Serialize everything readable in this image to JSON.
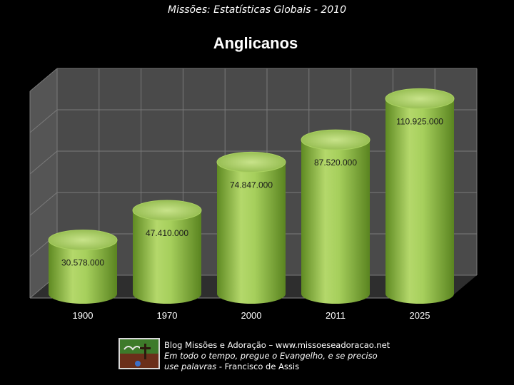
{
  "header": {
    "subtitle": "Missões: Estatísticas Globais - 2010"
  },
  "chart_data": {
    "type": "bar",
    "title": "Anglicanos",
    "categories": [
      "1900",
      "1970",
      "2000",
      "2011",
      "2025"
    ],
    "values": [
      30578000,
      47410000,
      74847000,
      87520000,
      110925000
    ],
    "value_labels": [
      "30.578.000",
      "47.410.000",
      "74.847.000",
      "87.520.000",
      "110.925.000"
    ],
    "ylim": [
      0,
      120000000
    ],
    "grid": true,
    "style": "3d-cylinder",
    "colors": {
      "bar_light": "#c4e07a",
      "bar_mid": "#9bc553",
      "bar_dark": "#5f8a22",
      "wall": "#4a4a4a",
      "grid": "#7a7a7a",
      "floor": "#2e2e2e"
    }
  },
  "footer": {
    "line1": "Blog Missões e Adoração – www.missoeseadoracao.net",
    "line2": "Em todo o tempo, pregue o Evangelho, e se preciso",
    "line3_italic": "use palavras",
    "line3_rest": " - Francisco de Assis"
  }
}
